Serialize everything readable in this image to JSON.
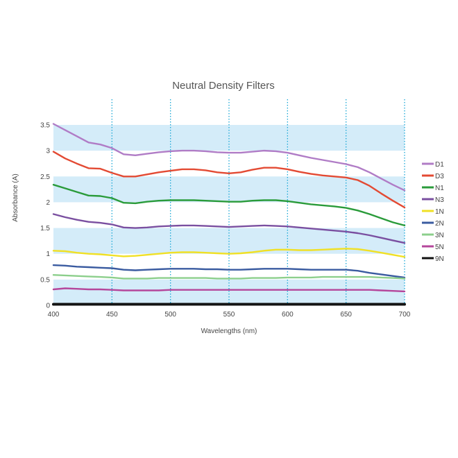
{
  "chart_data": {
    "type": "line",
    "title": "Neutral Density Filters",
    "xlabel": "Wavelengths (nm)",
    "ylabel": "Absorbance (A)",
    "xlim": [
      400,
      700
    ],
    "ylim": [
      0,
      3.5
    ],
    "x_ticks": [
      "400",
      "450",
      "500",
      "550",
      "600",
      "650",
      "700"
    ],
    "y_ticks": [
      "0",
      "0.5",
      "1",
      "1.5",
      "2",
      "2.5",
      "3",
      "3.5"
    ],
    "grid": "vertical dotted lines at 450, 500, 550, 600, 650, 700; alternating shaded horizontal bands",
    "legend_position": "right",
    "x": [
      400,
      410,
      420,
      430,
      440,
      450,
      460,
      470,
      480,
      490,
      500,
      510,
      520,
      530,
      540,
      550,
      560,
      570,
      580,
      590,
      600,
      610,
      620,
      630,
      640,
      650,
      660,
      670,
      680,
      690,
      700
    ],
    "series": [
      {
        "name": "D1",
        "color": "#b07cc6",
        "values": [
          3.52,
          3.4,
          3.28,
          3.16,
          3.12,
          3.05,
          2.93,
          2.91,
          2.94,
          2.97,
          2.99,
          3.0,
          3.0,
          2.99,
          2.97,
          2.96,
          2.96,
          2.98,
          3.0,
          2.99,
          2.96,
          2.91,
          2.86,
          2.82,
          2.78,
          2.74,
          2.68,
          2.58,
          2.46,
          2.34,
          2.23
        ]
      },
      {
        "name": "D3",
        "color": "#e34a33",
        "values": [
          2.98,
          2.85,
          2.75,
          2.66,
          2.65,
          2.57,
          2.5,
          2.5,
          2.54,
          2.58,
          2.61,
          2.64,
          2.64,
          2.62,
          2.58,
          2.56,
          2.58,
          2.63,
          2.67,
          2.67,
          2.64,
          2.59,
          2.55,
          2.52,
          2.5,
          2.48,
          2.43,
          2.32,
          2.17,
          2.03,
          1.9
        ]
      },
      {
        "name": "N1",
        "color": "#2a9b3a",
        "values": [
          2.34,
          2.27,
          2.2,
          2.13,
          2.12,
          2.08,
          1.99,
          1.98,
          2.01,
          2.03,
          2.04,
          2.04,
          2.04,
          2.03,
          2.02,
          2.01,
          2.01,
          2.03,
          2.04,
          2.04,
          2.02,
          1.99,
          1.96,
          1.94,
          1.92,
          1.89,
          1.84,
          1.77,
          1.69,
          1.61,
          1.55
        ]
      },
      {
        "name": "N3",
        "color": "#7a4fa0",
        "values": [
          1.77,
          1.71,
          1.66,
          1.62,
          1.6,
          1.57,
          1.51,
          1.5,
          1.51,
          1.53,
          1.54,
          1.55,
          1.55,
          1.54,
          1.53,
          1.52,
          1.53,
          1.54,
          1.55,
          1.54,
          1.53,
          1.51,
          1.49,
          1.47,
          1.45,
          1.43,
          1.4,
          1.36,
          1.31,
          1.26,
          1.21
        ]
      },
      {
        "name": "1N",
        "color": "#f0e025",
        "values": [
          1.06,
          1.05,
          1.02,
          1.0,
          0.99,
          0.97,
          0.95,
          0.96,
          0.98,
          1.0,
          1.02,
          1.03,
          1.03,
          1.02,
          1.01,
          1.0,
          1.01,
          1.03,
          1.06,
          1.08,
          1.08,
          1.07,
          1.07,
          1.08,
          1.09,
          1.1,
          1.09,
          1.06,
          1.02,
          0.98,
          0.94
        ]
      },
      {
        "name": "2N",
        "color": "#3a5ba0",
        "values": [
          0.78,
          0.77,
          0.75,
          0.74,
          0.73,
          0.72,
          0.69,
          0.68,
          0.69,
          0.7,
          0.71,
          0.71,
          0.71,
          0.7,
          0.7,
          0.69,
          0.69,
          0.7,
          0.71,
          0.71,
          0.71,
          0.7,
          0.69,
          0.69,
          0.69,
          0.69,
          0.67,
          0.63,
          0.6,
          0.57,
          0.54
        ]
      },
      {
        "name": "3N",
        "color": "#8ccf8c",
        "values": [
          0.59,
          0.58,
          0.57,
          0.56,
          0.55,
          0.54,
          0.52,
          0.52,
          0.52,
          0.53,
          0.53,
          0.53,
          0.53,
          0.53,
          0.52,
          0.52,
          0.52,
          0.53,
          0.53,
          0.53,
          0.54,
          0.54,
          0.54,
          0.55,
          0.55,
          0.55,
          0.55,
          0.55,
          0.54,
          0.53,
          0.52
        ]
      },
      {
        "name": "5N",
        "color": "#b5469b",
        "values": [
          0.31,
          0.33,
          0.32,
          0.31,
          0.31,
          0.3,
          0.29,
          0.29,
          0.29,
          0.29,
          0.3,
          0.3,
          0.3,
          0.3,
          0.3,
          0.3,
          0.3,
          0.3,
          0.3,
          0.3,
          0.3,
          0.3,
          0.3,
          0.3,
          0.3,
          0.3,
          0.3,
          0.3,
          0.29,
          0.28,
          0.27
        ]
      },
      {
        "name": "9N",
        "color": "#111111",
        "values": [
          0.02,
          0.02,
          0.02,
          0.02,
          0.02,
          0.02,
          0.02,
          0.02,
          0.02,
          0.02,
          0.02,
          0.02,
          0.02,
          0.02,
          0.02,
          0.02,
          0.02,
          0.02,
          0.02,
          0.02,
          0.02,
          0.02,
          0.02,
          0.02,
          0.02,
          0.02,
          0.02,
          0.02,
          0.02,
          0.02,
          0.02
        ]
      }
    ],
    "colors": {
      "band": "#d4ecf9",
      "gridline": "#19a7d6",
      "axis": "#222222"
    }
  }
}
